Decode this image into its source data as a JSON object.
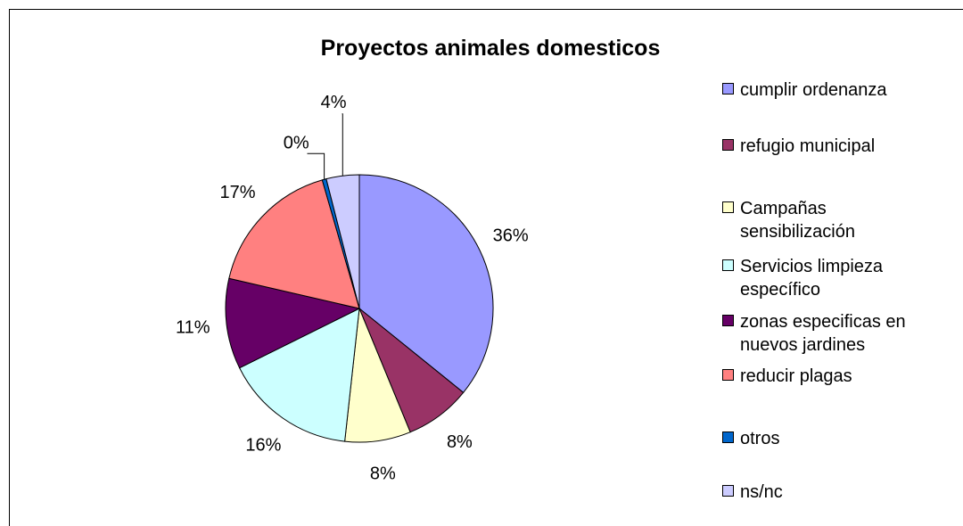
{
  "chart_data": {
    "type": "pie",
    "title": "Proyectos animales domesticos",
    "categories": [
      "cumplir ordenanza",
      "refugio municipal",
      "Campañas sensibilización",
      "Servicios limpieza específico",
      "zonas especificas en nuevos jardines",
      "reducir plagas",
      "otros",
      "ns/nc"
    ],
    "values": [
      36,
      8,
      8,
      16,
      11,
      17,
      0.5,
      4
    ],
    "value_labels": [
      "36%",
      "8%",
      "8%",
      "16%",
      "11%",
      "17%",
      "0%",
      "4%"
    ],
    "colors": [
      "#9999ff",
      "#993366",
      "#ffffcc",
      "#ccffff",
      "#660066",
      "#ff8080",
      "#0066cc",
      "#ccccff"
    ],
    "legend": "right"
  }
}
